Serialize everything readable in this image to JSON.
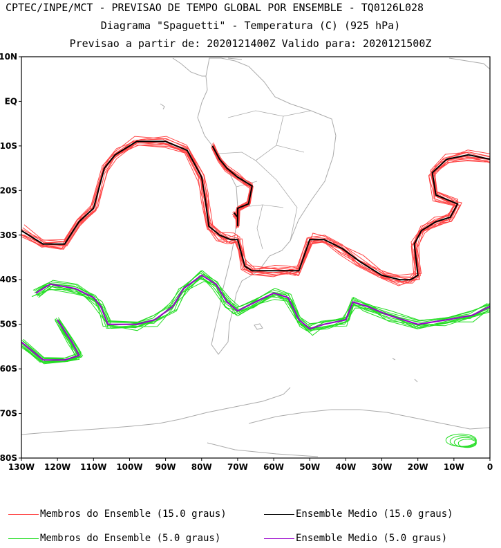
{
  "header": {
    "line1": "CPTEC/INPE/MCT - PREVISAO DE TEMPO GLOBAL POR ENSEMBLE - TQ0126L028",
    "line2": "Diagrama \"Spaguetti\" - Temperatura (C) (925 hPa)",
    "line3": "Previsao a partir de: 2020121400Z  Valido para: 2020121500Z"
  },
  "axes": {
    "y_ticks": [
      "10N",
      "EQ",
      "10S",
      "20S",
      "30S",
      "40S",
      "50S",
      "60S",
      "70S",
      "80S"
    ],
    "x_ticks": [
      "130W",
      "120W",
      "110W",
      "100W",
      "90W",
      "80W",
      "70W",
      "60W",
      "50W",
      "40W",
      "30W",
      "20W",
      "10W",
      "0"
    ],
    "lon_range": [
      -130,
      0
    ],
    "lat_range": [
      -80,
      10
    ]
  },
  "colors": {
    "members_15": "#ff4444",
    "mean_15": "#000000",
    "members_5": "#22dd22",
    "mean_5": "#9900cc",
    "land": "#aaaaaa"
  },
  "legend": [
    {
      "label": "Membros do Ensemble (15.0 graus)",
      "color": "#ff4444"
    },
    {
      "label": "Ensemble Medio (15.0 graus)",
      "color": "#000000"
    },
    {
      "label": "Membros do Ensemble (5.0 graus)",
      "color": "#22dd22"
    },
    {
      "label": "Ensemble Medio (5.0 graus)",
      "color": "#9900cc"
    }
  ],
  "contours": {
    "mean_15": [
      [
        -130,
        -29
      ],
      [
        -124,
        -32
      ],
      [
        -118,
        -32
      ],
      [
        -114,
        -27
      ],
      [
        -110,
        -24
      ],
      [
        -107,
        -15
      ],
      [
        -104,
        -12
      ],
      [
        -98,
        -9
      ],
      [
        -90,
        -9
      ],
      [
        -84,
        -11
      ],
      [
        -80,
        -17
      ],
      [
        -79,
        -22
      ],
      [
        -78,
        -28
      ],
      [
        -75,
        -30
      ],
      [
        -72,
        -31
      ],
      [
        -70,
        -31
      ],
      [
        -69,
        -34
      ],
      [
        -68,
        -37
      ],
      [
        -66,
        -38
      ],
      [
        -60,
        -38
      ],
      [
        -56,
        -38
      ],
      [
        -53,
        -38
      ],
      [
        -50,
        -31
      ],
      [
        -46,
        -31
      ],
      [
        -41,
        -33
      ],
      [
        -36,
        -36
      ],
      [
        -30,
        -39
      ],
      [
        -25,
        -40
      ],
      [
        -22,
        -40
      ],
      [
        -20,
        -39
      ],
      [
        -21,
        -32
      ],
      [
        -19,
        -29
      ],
      [
        -15,
        -27
      ],
      [
        -11,
        -26
      ],
      [
        -9,
        -23
      ],
      [
        -15,
        -21
      ],
      [
        -16,
        -16
      ],
      [
        -12,
        -13
      ],
      [
        -6,
        -12
      ],
      [
        0,
        -13
      ]
    ],
    "mean_15_b": [
      [
        -77,
        -10
      ],
      [
        -75,
        -13
      ],
      [
        -73,
        -15
      ],
      [
        -70,
        -17
      ],
      [
        -68,
        -18
      ],
      [
        -66,
        -19
      ],
      [
        -67,
        -23
      ],
      [
        -70,
        -24
      ],
      [
        -70,
        -28
      ],
      [
        -70,
        -26
      ],
      [
        -71,
        -25
      ]
    ],
    "mean_5": [
      [
        -126,
        -43
      ],
      [
        -122,
        -41
      ],
      [
        -115,
        -42
      ],
      [
        -110,
        -44
      ],
      [
        -108,
        -46
      ],
      [
        -106,
        -50
      ],
      [
        -98,
        -50
      ],
      [
        -93,
        -49
      ],
      [
        -88,
        -46
      ],
      [
        -85,
        -42
      ],
      [
        -80,
        -39
      ],
      [
        -76,
        -41
      ],
      [
        -73,
        -45
      ],
      [
        -70,
        -47
      ],
      [
        -65,
        -45
      ],
      [
        -60,
        -43
      ],
      [
        -56,
        -44
      ],
      [
        -53,
        -49
      ],
      [
        -50,
        -51
      ],
      [
        -46,
        -50
      ],
      [
        -40,
        -49
      ],
      [
        -38,
        -45
      ],
      [
        -34,
        -46
      ],
      [
        -28,
        -48
      ],
      [
        -20,
        -50
      ],
      [
        -12,
        -49
      ],
      [
        -5,
        -48
      ],
      [
        0,
        -46
      ]
    ],
    "mean_5_b": [
      [
        -130,
        -54
      ],
      [
        -124,
        -58
      ],
      [
        -118,
        -58
      ],
      [
        -114,
        -57
      ],
      [
        -116,
        -54
      ],
      [
        -120,
        -49
      ]
    ]
  }
}
